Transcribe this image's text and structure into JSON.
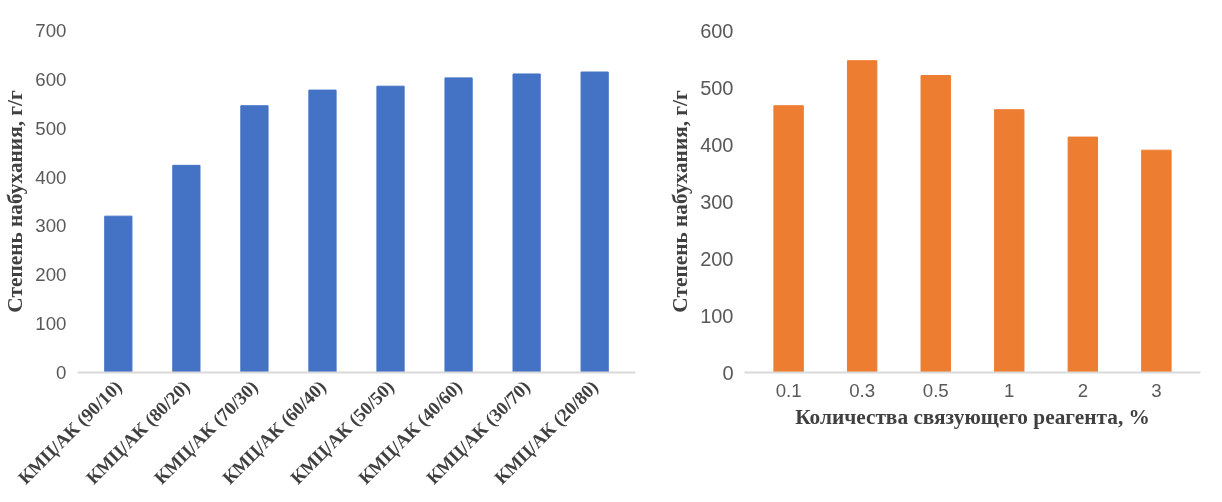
{
  "chart_data": [
    {
      "type": "bar",
      "ylabel": "Степень набухания, г/г",
      "categories": [
        "КМЦ/АК (90/10)",
        "КМЦ/АК (80/20)",
        "КМЦ/АК (70/30)",
        "КМЦ/АК (60/40)",
        "КМЦ/АК (50/50)",
        "КМЦ/АК (40/60)",
        "КМЦ/АК (30/70)",
        "КМЦ/АК (20/80)"
      ],
      "series": [
        {
          "color": "#4472c4",
          "values": [
            320,
            424,
            546,
            578,
            586,
            603,
            611,
            615
          ]
        }
      ],
      "ylim": [
        0,
        700
      ],
      "yticks": [
        0,
        100,
        200,
        300,
        400,
        500,
        600,
        700
      ]
    },
    {
      "type": "bar",
      "ylabel": "Степень набухания, г/г",
      "xlabel": "Количества связующего реагента, %",
      "categories": [
        "0.1",
        "0.3",
        "0.5",
        "1",
        "2",
        "3"
      ],
      "series": [
        {
          "color": "#ed7d31",
          "values": [
            468,
            547,
            521,
            461,
            413,
            390
          ]
        }
      ],
      "ylim": [
        0,
        600
      ],
      "yticks": [
        0,
        100,
        200,
        300,
        400,
        500,
        600
      ]
    }
  ]
}
